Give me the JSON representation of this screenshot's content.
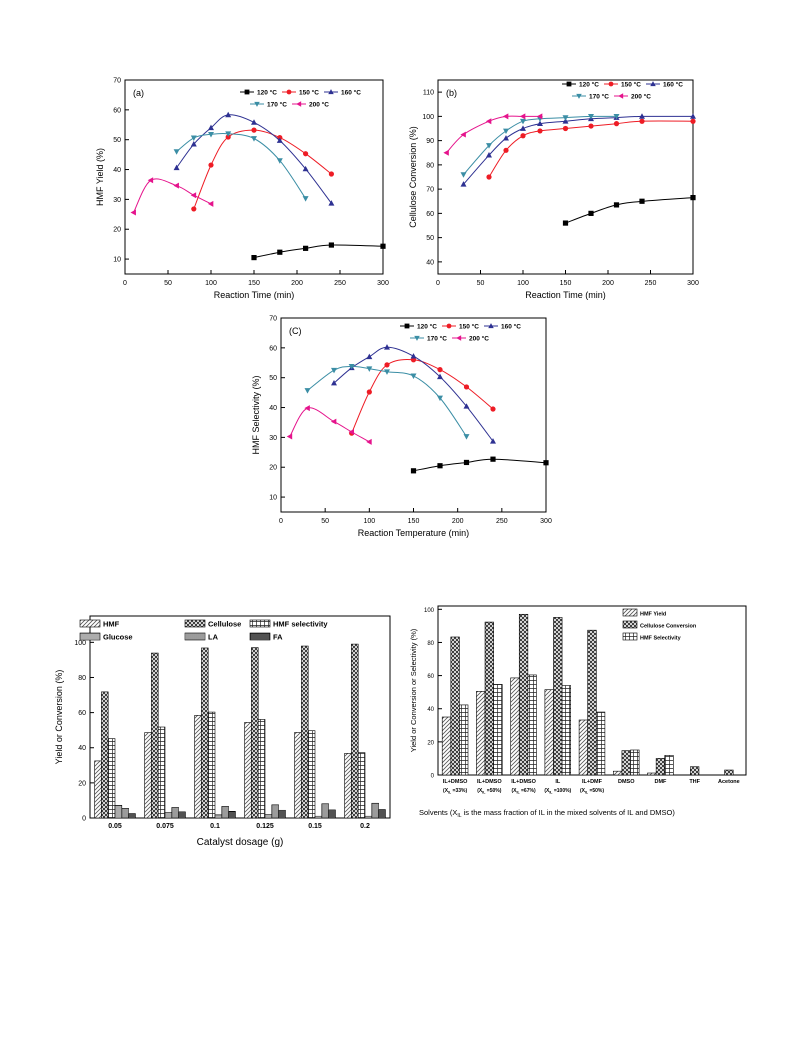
{
  "chart_data": [
    {
      "id": "a",
      "type": "line",
      "panel_label": "(a)",
      "xlabel": "Reaction Time (min)",
      "ylabel": "HMF Yield (%)",
      "xlim": [
        0,
        300
      ],
      "ylim": [
        5,
        70
      ],
      "xticks": [
        0,
        50,
        100,
        150,
        200,
        250,
        300
      ],
      "yticks": [
        10,
        20,
        30,
        40,
        50,
        60,
        70
      ],
      "legend_position": "top-right",
      "series": [
        {
          "name": "120 °C",
          "color": "#000000",
          "marker": "square",
          "x": [
            150,
            180,
            210,
            240,
            300
          ],
          "y": [
            10.5,
            12.3,
            13.6,
            14.7,
            14.3
          ]
        },
        {
          "name": "150 °C",
          "color": "#ee1c25",
          "marker": "circle",
          "x": [
            80,
            100,
            120,
            150,
            180,
            210,
            240
          ],
          "y": [
            26.8,
            41.5,
            50.9,
            53.2,
            50.7,
            45.3,
            38.5
          ]
        },
        {
          "name": "160 °C",
          "color": "#2e3192",
          "marker": "triangle-up",
          "x": [
            60,
            80,
            100,
            120,
            150,
            180,
            210,
            240
          ],
          "y": [
            40.6,
            48.5,
            54.0,
            58.3,
            55.8,
            49.7,
            40.2,
            28.7
          ]
        },
        {
          "name": "170 °C",
          "color": "#3b8ea5",
          "marker": "triangle-down",
          "x": [
            60,
            80,
            100,
            120,
            150,
            180,
            210
          ],
          "y": [
            46.0,
            50.6,
            51.8,
            52.0,
            50.4,
            43.0,
            30.3
          ]
        },
        {
          "name": "200 °C",
          "color": "#e5138c",
          "marker": "triangle-left",
          "x": [
            10,
            30,
            60,
            80,
            100
          ],
          "y": [
            25.6,
            36.4,
            34.6,
            31.4,
            28.5
          ]
        }
      ]
    },
    {
      "id": "b",
      "type": "line",
      "panel_label": "(b)",
      "xlabel": "Reaction Time (min)",
      "ylabel": "Cellulose Conversion (%)",
      "xlim": [
        0,
        300
      ],
      "ylim": [
        35,
        115
      ],
      "xticks": [
        0,
        50,
        100,
        150,
        200,
        250,
        300
      ],
      "yticks": [
        40,
        50,
        60,
        70,
        80,
        90,
        100,
        110
      ],
      "legend_position": "top-right",
      "series": [
        {
          "name": "120 °C",
          "color": "#000000",
          "marker": "square",
          "x": [
            150,
            180,
            210,
            240,
            300
          ],
          "y": [
            56,
            60,
            63.5,
            65,
            66.5
          ]
        },
        {
          "name": "150 °C",
          "color": "#ee1c25",
          "marker": "circle",
          "x": [
            60,
            80,
            100,
            120,
            150,
            180,
            210,
            240,
            300
          ],
          "y": [
            75,
            86,
            92,
            94,
            95,
            96,
            97,
            98,
            98
          ]
        },
        {
          "name": "160 °C",
          "color": "#2e3192",
          "marker": "triangle-up",
          "x": [
            30,
            60,
            80,
            100,
            120,
            150,
            180,
            210,
            240,
            300
          ],
          "y": [
            72,
            84,
            91,
            95,
            97,
            98,
            99,
            99.5,
            100,
            100
          ]
        },
        {
          "name": "170 °C",
          "color": "#3b8ea5",
          "marker": "triangle-down",
          "x": [
            30,
            60,
            80,
            100,
            120,
            150,
            180,
            210
          ],
          "y": [
            76,
            88,
            94,
            98,
            99,
            99.5,
            100,
            100
          ]
        },
        {
          "name": "200 °C",
          "color": "#e5138c",
          "marker": "triangle-left",
          "x": [
            10,
            30,
            60,
            80,
            100,
            120
          ],
          "y": [
            85,
            92.5,
            98,
            100,
            100,
            100
          ]
        }
      ]
    },
    {
      "id": "c",
      "type": "line",
      "panel_label": "(C)",
      "xlabel": "Reaction Temperature (min)",
      "ylabel": "HMF Selectivity (%)",
      "xlim": [
        0,
        300
      ],
      "ylim": [
        5,
        70
      ],
      "xticks": [
        0,
        50,
        100,
        150,
        200,
        250,
        300
      ],
      "yticks": [
        10,
        20,
        30,
        40,
        50,
        60,
        70
      ],
      "legend_position": "top-right",
      "series": [
        {
          "name": "120 °C",
          "color": "#000000",
          "marker": "square",
          "x": [
            150,
            180,
            210,
            240,
            300
          ],
          "y": [
            18.8,
            20.5,
            21.6,
            22.7,
            21.5
          ]
        },
        {
          "name": "150 °C",
          "color": "#ee1c25",
          "marker": "circle",
          "x": [
            80,
            100,
            120,
            150,
            180,
            210,
            240
          ],
          "y": [
            31.4,
            45.2,
            54.3,
            56.0,
            52.7,
            46.9,
            39.5
          ]
        },
        {
          "name": "160 °C",
          "color": "#2e3192",
          "marker": "triangle-up",
          "x": [
            60,
            80,
            100,
            120,
            150,
            180,
            210,
            240
          ],
          "y": [
            48.2,
            53.3,
            57.0,
            60.2,
            57.2,
            50.3,
            40.4,
            28.7
          ]
        },
        {
          "name": "170 °C",
          "color": "#3b8ea5",
          "marker": "triangle-down",
          "x": [
            30,
            60,
            80,
            100,
            120,
            150,
            180,
            210
          ],
          "y": [
            45.7,
            52.5,
            53.8,
            53.0,
            52.0,
            50.6,
            43.2,
            30.3
          ]
        },
        {
          "name": "200 °C",
          "color": "#e5138c",
          "marker": "triangle-left",
          "x": [
            10,
            30,
            60,
            80,
            100
          ],
          "y": [
            30.3,
            39.8,
            35.3,
            31.8,
            28.5
          ]
        }
      ]
    },
    {
      "id": "d",
      "type": "bar",
      "xlabel": "Catalyst dosage (g)",
      "ylabel": "Yield or Conversion  (%)",
      "ylim": [
        0,
        115
      ],
      "yticks": [
        0,
        20,
        40,
        60,
        80,
        100
      ],
      "legend_position": "top",
      "categories": [
        "0.05",
        "0.075",
        "0.1",
        "0.125",
        "0.15",
        "0.2"
      ],
      "series": [
        {
          "name": "HMF",
          "pattern": "diag",
          "values": [
            32.5,
            48.6,
            58.4,
            54.4,
            48.7,
            36.8
          ]
        },
        {
          "name": "Cellulose",
          "pattern": "xhatch",
          "values": [
            71.8,
            93.9,
            96.8,
            97.0,
            97.9,
            99.0
          ]
        },
        {
          "name": "HMF selectivity",
          "pattern": "grid",
          "values": [
            45.2,
            51.8,
            60.3,
            56.1,
            49.7,
            37.2
          ]
        },
        {
          "name": "Glucose",
          "pattern": "hlines",
          "values": [
            7.2,
            3.2,
            1.8,
            2.0,
            1.0,
            1.0
          ]
        },
        {
          "name": "LA",
          "pattern": "vlines",
          "values": [
            5.5,
            6.0,
            6.6,
            7.5,
            8.1,
            8.4
          ]
        },
        {
          "name": "FA",
          "pattern": "dense",
          "values": [
            2.5,
            3.5,
            3.8,
            4.4,
            4.6,
            4.8
          ]
        }
      ]
    },
    {
      "id": "e",
      "type": "bar",
      "xlabel": "Solvents  (X  is the mass fraction of IL in the mixed solvents of IL and DMSO)",
      "xlabel_sub": "IL",
      "ylabel": "Yield or Conversion or Selectivity (%)",
      "ylim": [
        0,
        102
      ],
      "yticks": [
        0,
        20,
        40,
        60,
        80,
        100
      ],
      "legend_position": "top-center",
      "categories": [
        {
          "line1": "IL+DMSO",
          "line2": "(X =33%)"
        },
        {
          "line1": "IL+DMSO",
          "line2": "(X =50%)"
        },
        {
          "line1": "IL+DMSO",
          "line2": "(X =67%)"
        },
        {
          "line1": "IL",
          "line2": "(X =100%)"
        },
        {
          "line1": "IL+DMF",
          "line2": "(X =50%)"
        },
        {
          "line1": "DMSO",
          "line2": ""
        },
        {
          "line1": "DMF",
          "line2": ""
        },
        {
          "line1": "THF",
          "line2": ""
        },
        {
          "line1": "Acetone",
          "line2": ""
        }
      ],
      "category_sub": "IL",
      "series": [
        {
          "name": "HMF  Yield",
          "pattern": "diag",
          "values": [
            35.0,
            50.5,
            58.6,
            51.5,
            33.2,
            2.3,
            1.2,
            0,
            0
          ]
        },
        {
          "name": "Cellulose Conversion",
          "pattern": "xhatch",
          "values": [
            83.3,
            92.3,
            97.0,
            95.1,
            87.4,
            14.7,
            10.0,
            5.0,
            3.0
          ]
        },
        {
          "name": "HMF Selectivity",
          "pattern": "grid",
          "values": [
            42.3,
            54.7,
            60.4,
            54.0,
            38.0,
            15.1,
            11.8,
            0,
            0
          ]
        }
      ]
    }
  ]
}
